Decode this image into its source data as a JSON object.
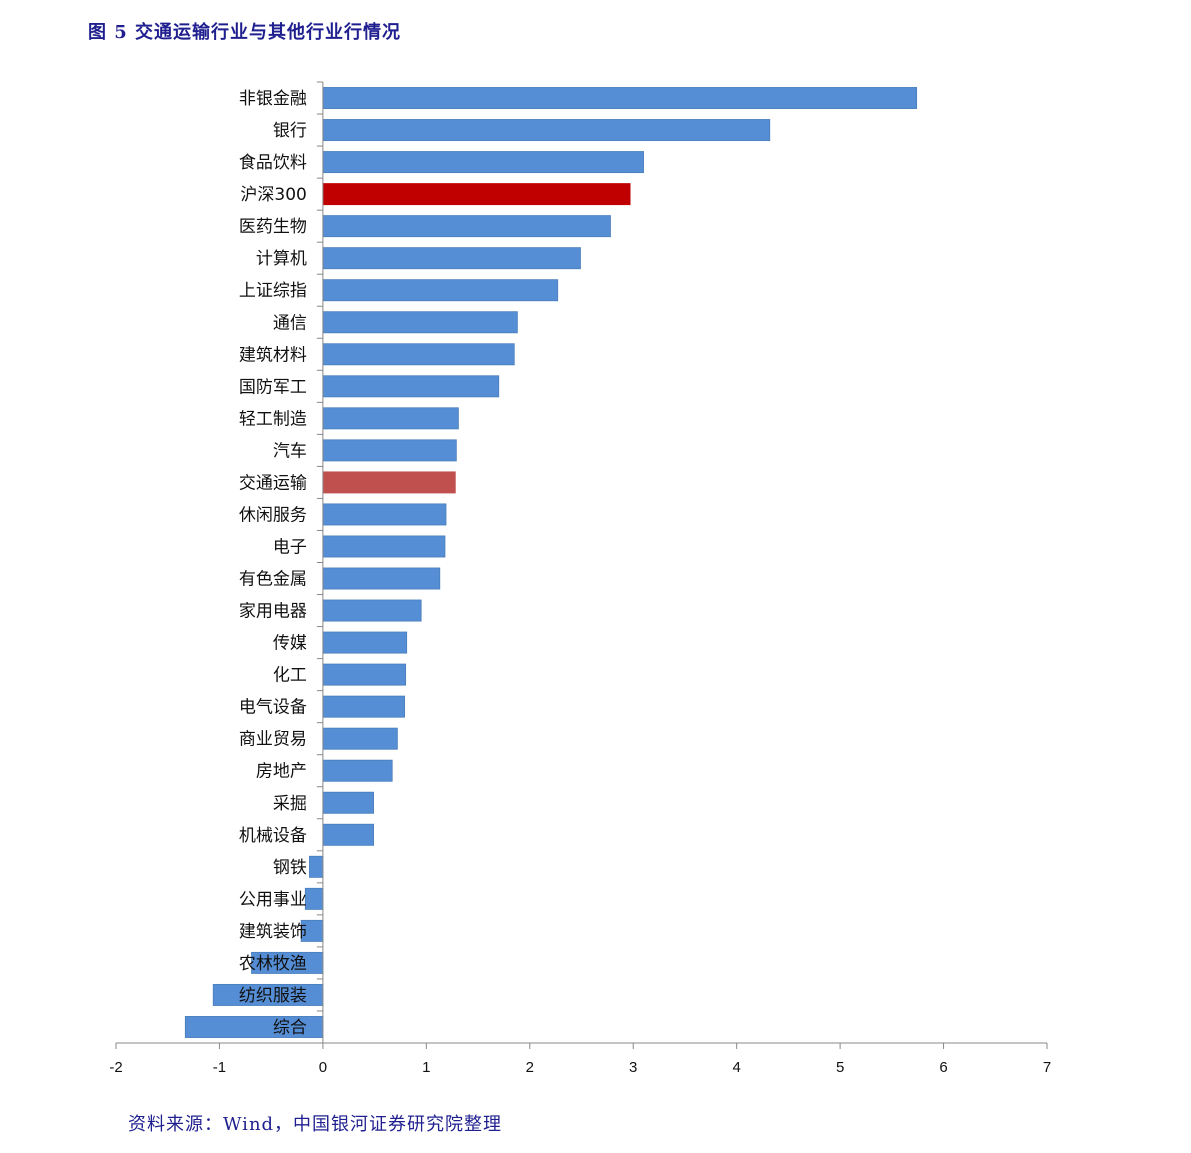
{
  "header": {
    "title": "图 5 交通运输行业与其他行业行情况"
  },
  "footer": {
    "source": "资料来源：Wind，中国银河证券研究院整理"
  },
  "chart_data": {
    "type": "bar",
    "orientation": "horizontal",
    "categories": [
      "非银金融",
      "银行",
      "食品饮料",
      "沪深300",
      "医药生物",
      "计算机",
      "上证综指",
      "通信",
      "建筑材料",
      "国防军工",
      "轻工制造",
      "汽车",
      "交通运输",
      "休闲服务",
      "电子",
      "有色金属",
      "家用电器",
      "传媒",
      "化工",
      "电气设备",
      "商业贸易",
      "房地产",
      "采掘",
      "机械设备",
      "钢铁",
      "公用事业",
      "建筑装饰",
      "农林牧渔",
      "纺织服装",
      "综合"
    ],
    "values": [
      5.74,
      4.32,
      3.1,
      2.97,
      2.78,
      2.49,
      2.27,
      1.88,
      1.85,
      1.7,
      1.31,
      1.29,
      1.28,
      1.19,
      1.18,
      1.13,
      0.95,
      0.81,
      0.8,
      0.79,
      0.72,
      0.67,
      0.49,
      0.49,
      -0.13,
      -0.17,
      -0.21,
      -0.69,
      -1.06,
      -1.33
    ],
    "tick_labels": [
      "-2",
      "-1",
      "0",
      "1",
      "2",
      "3",
      "4",
      "5",
      "6",
      "7"
    ],
    "xlim": [
      -2,
      7
    ],
    "colors": {
      "default": "#558ed5",
      "highlight_index": "#c00000",
      "highlight_sector": "#c0504d",
      "border": "#4a7ebb"
    },
    "highlight": {
      "沪深300": "highlight_index",
      "交通运输": "highlight_sector"
    },
    "grid": false,
    "legend": "none"
  }
}
